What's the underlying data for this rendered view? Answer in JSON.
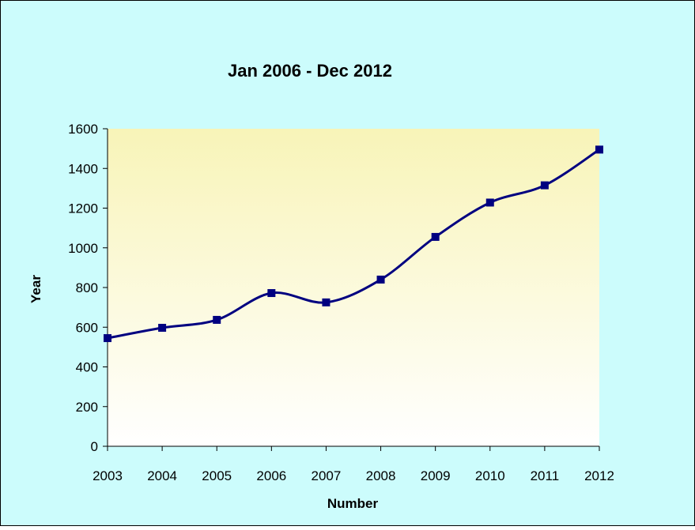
{
  "chart_data": {
    "type": "line",
    "title": "Jan 2006 - Dec 2012",
    "xlabel": "Number",
    "ylabel": "Year",
    "categories": [
      "2003",
      "2004",
      "2005",
      "2006",
      "2007",
      "2008",
      "2009",
      "2010",
      "2011",
      "2012"
    ],
    "series": [
      {
        "values": [
          545,
          597,
          637,
          772,
          725,
          840,
          1055,
          1228,
          1315,
          1495
        ]
      }
    ],
    "ylim": [
      0,
      1600
    ],
    "yticks": [
      "0",
      "200",
      "400",
      "600",
      "800",
      "1000",
      "1200",
      "1400",
      "1600"
    ],
    "grid": false,
    "legend": "none",
    "marker": "square"
  },
  "colors": {
    "chart_background": "#ccfcfc",
    "plot_gradient_top": "#f8f4b8",
    "plot_gradient_bottom": "#ffffff",
    "line": "#000080",
    "marker": "#000080",
    "axis": "#000000",
    "frame": "#000000"
  }
}
